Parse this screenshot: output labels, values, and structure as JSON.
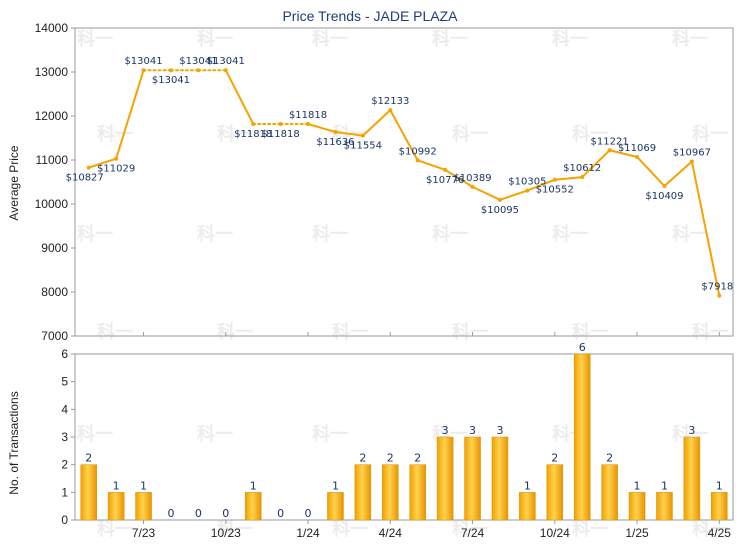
{
  "chart_data": [
    {
      "type": "line",
      "title": "Price Trends - JADE PLAZA",
      "ylabel": "Average Price",
      "ylim": [
        7000,
        14000
      ],
      "yticks": [
        "7000",
        "8000",
        "9000",
        "10000",
        "11000",
        "12000",
        "13000",
        "14000"
      ],
      "series": [
        {
          "color": "#f5a300",
          "values": [
            10827,
            11029,
            13041,
            13041,
            13041,
            13041,
            11818,
            11818,
            11818,
            11636,
            11554,
            12133,
            10992,
            10776,
            10389,
            10095,
            10305,
            10552,
            10612,
            11221,
            11069,
            10409,
            10967,
            7918
          ],
          "labels": [
            "$10827",
            "$11029",
            "$13041",
            "$13041",
            "$13041",
            "$13041",
            "$11818",
            "$11818",
            "$11818",
            "$11636",
            "$11554",
            "$12133",
            "$10992",
            "$10776",
            "$10389",
            "$10095",
            "$10305",
            "$10552",
            "$10612",
            "$11221",
            "$11069",
            "$10409",
            "$10967",
            "$7918"
          ],
          "dotted_segments": [
            [
              2,
              5
            ],
            [
              6,
              8
            ]
          ]
        }
      ]
    },
    {
      "type": "bar",
      "ylabel": "No. of Transactions",
      "ylim": [
        0,
        6
      ],
      "yticks": [
        "0",
        "1",
        "2",
        "3",
        "4",
        "5",
        "6"
      ],
      "x_tick_labels": [
        "7/23",
        "10/23",
        "1/24",
        "4/24",
        "7/24",
        "10/24",
        "1/25",
        "4/25"
      ],
      "values": [
        2,
        1,
        1,
        0,
        0,
        0,
        1,
        0,
        0,
        1,
        2,
        2,
        2,
        3,
        3,
        3,
        1,
        2,
        6,
        2,
        1,
        1,
        3,
        1
      ],
      "bar_color": "#f5a300"
    }
  ],
  "watermark": "科一",
  "colors": {
    "line": "#f5a300",
    "bar": "#f5a300",
    "frame": "#9a9a9a",
    "grid": "#e6e6e6",
    "title": "#1f3d7a",
    "label": "#1a3566"
  }
}
